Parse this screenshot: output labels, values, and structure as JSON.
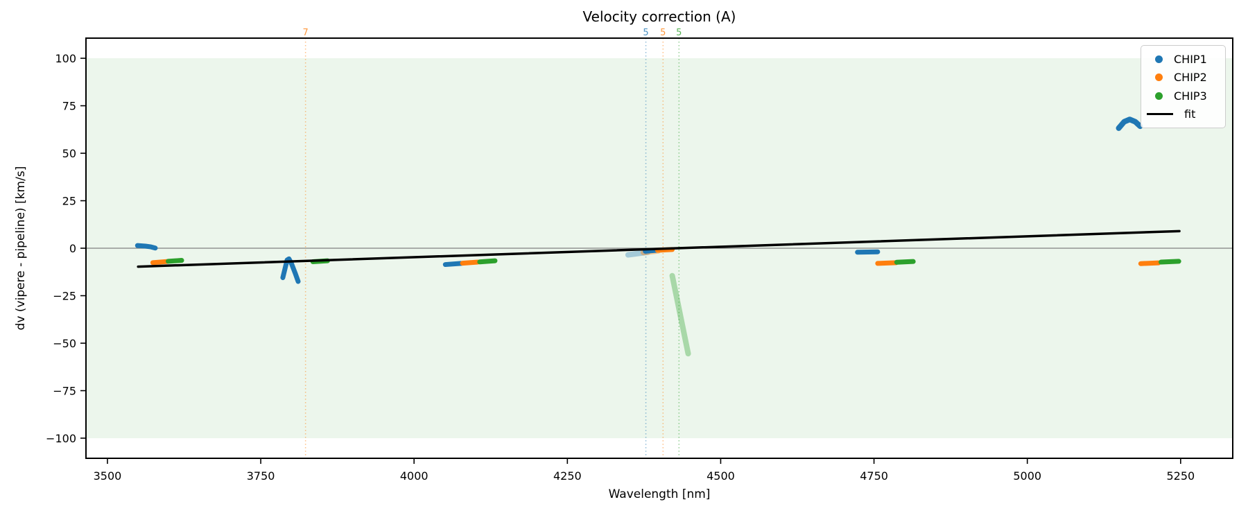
{
  "chart_data": {
    "type": "scatter",
    "title": "Velocity correction (A)",
    "xlabel": "Wavelength [nm]",
    "ylabel": "dv (vipere - pipeline) [km/s]",
    "xlim": [
      3465,
      5335
    ],
    "ylim": [
      -110.6,
      110.6
    ],
    "grid": false,
    "background_band": {
      "ymin": -100,
      "ymax": 100,
      "color": "#2ca02c",
      "alpha": 0.09
    },
    "zero_line": {
      "y": 0,
      "color": "#808080",
      "width": 1.2
    },
    "x_ticks": [
      {
        "value": 3500,
        "label": "3500"
      },
      {
        "value": 3750,
        "label": "3750"
      },
      {
        "value": 4000,
        "label": "4000"
      },
      {
        "value": 4250,
        "label": "4250"
      },
      {
        "value": 4500,
        "label": "4500"
      },
      {
        "value": 4750,
        "label": "4750"
      },
      {
        "value": 5000,
        "label": "5000"
      },
      {
        "value": 5250,
        "label": "5250"
      }
    ],
    "y_ticks": [
      {
        "value": 100,
        "label": "100"
      },
      {
        "value": 75,
        "label": "75"
      },
      {
        "value": 50,
        "label": "50"
      },
      {
        "value": 25,
        "label": "25"
      },
      {
        "value": 0,
        "label": "0"
      },
      {
        "value": -25,
        "label": "−25"
      },
      {
        "value": -50,
        "label": "−50"
      },
      {
        "value": -75,
        "label": "−75"
      },
      {
        "value": -100,
        "label": "−100"
      }
    ],
    "vlines": [
      {
        "x": 3823,
        "label": "7",
        "color": "#ff7f0e"
      },
      {
        "x": 4378,
        "label": "5",
        "color": "#1f77b4"
      },
      {
        "x": 4406,
        "label": "5",
        "color": "#ff7f0e"
      },
      {
        "x": 4432,
        "label": "5",
        "color": "#2ca02c"
      }
    ],
    "series": [
      {
        "name": "CHIP1",
        "color": "#1f77b4",
        "clusters": [
          {
            "alpha": 1,
            "width": 7,
            "points": [
              [
                3549,
                1.4
              ],
              [
                3562,
                1.1
              ],
              [
                3571,
                0.7
              ],
              [
                3578,
                0.1
              ]
            ]
          },
          {
            "alpha": 1,
            "width": 7,
            "points": [
              [
                3786,
                -15.5
              ],
              [
                3793,
                -6.2
              ],
              [
                3796,
                -5.6
              ],
              [
                3800,
                -8.0
              ],
              [
                3806,
                -13.0
              ],
              [
                3811,
                -17.5
              ]
            ]
          },
          {
            "alpha": 1,
            "width": 7,
            "points": [
              [
                4051,
                -8.6
              ],
              [
                4077,
                -8.0
              ]
            ]
          },
          {
            "alpha": 0.35,
            "width": 8,
            "points": [
              [
                4349,
                -3.5
              ],
              [
                4381,
                -2.1
              ]
            ]
          },
          {
            "alpha": 1,
            "width": 7,
            "points": [
              [
                4377,
                -1.6
              ],
              [
                4395,
                -1.1
              ]
            ]
          },
          {
            "alpha": 1,
            "width": 7,
            "points": [
              [
                4723,
                -2.1
              ],
              [
                4756,
                -1.9
              ]
            ]
          },
          {
            "alpha": 1,
            "width": 8,
            "points": [
              [
                5149,
                63.2
              ],
              [
                5158,
                66.6
              ],
              [
                5167,
                67.8
              ],
              [
                5176,
                66.6
              ],
              [
                5184,
                64.2
              ]
            ]
          }
        ]
      },
      {
        "name": "CHIP2",
        "color": "#ff7f0e",
        "clusters": [
          {
            "alpha": 1,
            "width": 7,
            "points": [
              [
                3574,
                -7.6
              ],
              [
                3597,
                -7.0
              ]
            ]
          },
          {
            "alpha": 1,
            "width": 7,
            "points": [
              [
                4079,
                -7.9
              ],
              [
                4104,
                -7.3
              ]
            ]
          },
          {
            "alpha": 0.4,
            "width": 8,
            "points": [
              [
                4374,
                -2.3
              ],
              [
                4398,
                -1.4
              ]
            ]
          },
          {
            "alpha": 1,
            "width": 7,
            "points": [
              [
                4397,
                -1.1
              ],
              [
                4421,
                -0.7
              ]
            ]
          },
          {
            "alpha": 1,
            "width": 7,
            "points": [
              [
                4756,
                -8.0
              ],
              [
                4786,
                -7.6
              ]
            ]
          },
          {
            "alpha": 1,
            "width": 7,
            "points": [
              [
                5185,
                -8.1
              ],
              [
                5214,
                -7.7
              ]
            ]
          }
        ]
      },
      {
        "name": "CHIP3",
        "color": "#2ca02c",
        "clusters": [
          {
            "alpha": 1,
            "width": 7,
            "points": [
              [
                3599,
                -6.9
              ],
              [
                3621,
                -6.4
              ]
            ]
          },
          {
            "alpha": 1,
            "width": 7,
            "points": [
              [
                3835,
                -7.1
              ],
              [
                3859,
                -6.6
              ]
            ]
          },
          {
            "alpha": 1,
            "width": 7,
            "points": [
              [
                4107,
                -7.2
              ],
              [
                4132,
                -6.6
              ]
            ]
          },
          {
            "alpha": 0.35,
            "width": 8,
            "points": [
              [
                4421,
                -14.5
              ],
              [
                4447,
                -55.5
              ]
            ]
          },
          {
            "alpha": 1,
            "width": 7,
            "points": [
              [
                4787,
                -7.4
              ],
              [
                4814,
                -7.0
              ]
            ]
          },
          {
            "alpha": 1,
            "width": 7,
            "points": [
              [
                5218,
                -7.3
              ],
              [
                5247,
                -6.9
              ]
            ]
          }
        ]
      }
    ],
    "fit": {
      "label": "fit",
      "color": "#000000",
      "width": 3.5,
      "points": [
        [
          3550,
          -9.7
        ],
        [
          5248,
          9.0
        ]
      ]
    },
    "legend": {
      "position": "upper right",
      "entries": [
        {
          "label": "CHIP1",
          "color": "#1f77b4",
          "marker": "dot"
        },
        {
          "label": "CHIP2",
          "color": "#ff7f0e",
          "marker": "dot"
        },
        {
          "label": "CHIP3",
          "color": "#2ca02c",
          "marker": "dot"
        },
        {
          "label": "fit",
          "color": "#000000",
          "marker": "line"
        }
      ]
    }
  }
}
